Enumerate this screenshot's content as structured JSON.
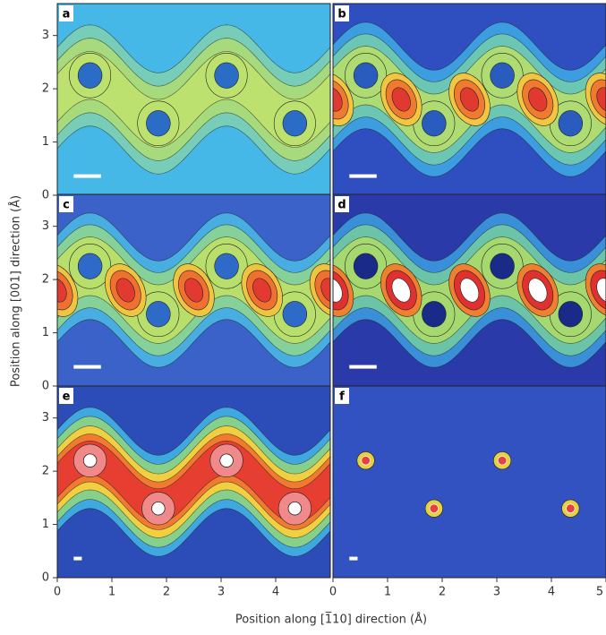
{
  "chart_data": {
    "type": "heatmap",
    "xlabel": "Position along [1̅10] direction (Å)",
    "ylabel": "Position along [001] direction (Å)",
    "xlim": [
      0,
      5
    ],
    "ylim": [
      0,
      3.6
    ],
    "yticks": [
      0,
      1,
      2,
      3
    ],
    "panels": [
      {
        "label": "a"
      },
      {
        "label": "b"
      },
      {
        "label": "c"
      },
      {
        "label": "d"
      },
      {
        "label": "e",
        "xticks": [
          0,
          1,
          2,
          3,
          4
        ]
      },
      {
        "label": "f",
        "xticks": [
          0,
          1,
          2,
          3,
          4,
          5
        ]
      }
    ]
  }
}
